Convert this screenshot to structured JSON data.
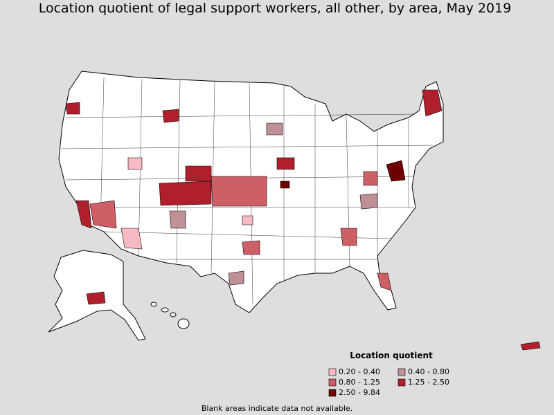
{
  "title": "Location quotient of legal support workers, all other, by area, May 2019",
  "legend": {
    "title": "Location quotient",
    "items": [
      {
        "label": "0.20 - 0.40",
        "color": "#f7b9c4"
      },
      {
        "label": "0.40 - 0.80",
        "color": "#bf9095"
      },
      {
        "label": "0.80 - 1.25",
        "color": "#cf5f66"
      },
      {
        "label": "1.25 - 2.50",
        "color": "#b0202c"
      },
      {
        "label": "2.50 - 9.84",
        "color": "#6e0000"
      }
    ]
  },
  "note": "Blank areas indicate data not available."
}
